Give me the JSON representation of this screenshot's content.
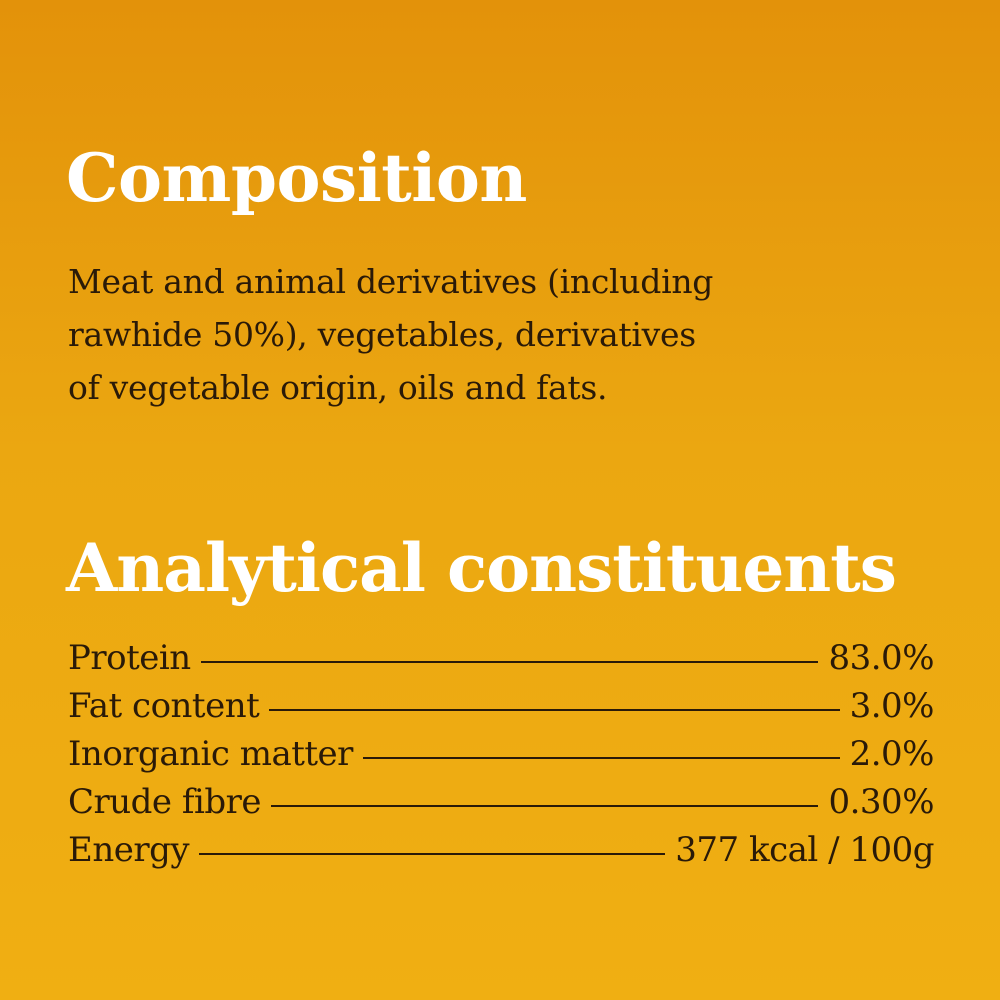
{
  "composition": {
    "heading": "Composition",
    "lines": [
      "Meat and animal derivatives (including",
      "rawhide 50%), vegetables, derivatives",
      "of vegetable origin, oils and fats."
    ]
  },
  "analytical": {
    "heading": "Analytical constituents",
    "rows": [
      {
        "label": "Protein",
        "value": "83.0%"
      },
      {
        "label": "Fat content",
        "value": "3.0%"
      },
      {
        "label": "Inorganic matter",
        "value": "2.0%"
      },
      {
        "label": "Crude fibre",
        "value": "0.30%"
      },
      {
        "label": "Energy",
        "value": "377 kcal / 100g"
      }
    ]
  },
  "colors": {
    "background_top": "#e3920a",
    "background_bottom": "#f0af12",
    "heading": "#ffffff",
    "body_text": "#2a1a08"
  }
}
